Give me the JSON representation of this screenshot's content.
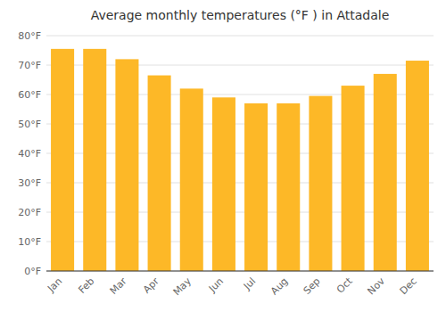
{
  "chart_data": {
    "type": "bar",
    "title": "Average monthly temperatures (°F ) in Attadale",
    "categories": [
      "Jan",
      "Feb",
      "Mar",
      "Apr",
      "May",
      "Jun",
      "Jul",
      "Aug",
      "Sep",
      "Oct",
      "Nov",
      "Dec"
    ],
    "values": [
      75.5,
      75.5,
      72,
      66.5,
      62,
      59,
      57,
      57,
      59.5,
      63,
      67,
      71.5
    ],
    "color": "#FDB827",
    "ylim": [
      0,
      80
    ],
    "yticks": [
      {
        "value": 0,
        "label": "0°F"
      },
      {
        "value": 10,
        "label": "10°F"
      },
      {
        "value": 20,
        "label": "20°F"
      },
      {
        "value": 30,
        "label": "30°F"
      },
      {
        "value": 40,
        "label": "40°F"
      },
      {
        "value": 50,
        "label": "50°F"
      },
      {
        "value": 60,
        "label": "60°F"
      },
      {
        "value": 70,
        "label": "70°F"
      },
      {
        "value": 80,
        "label": "80°F"
      }
    ],
    "grid": true
  }
}
